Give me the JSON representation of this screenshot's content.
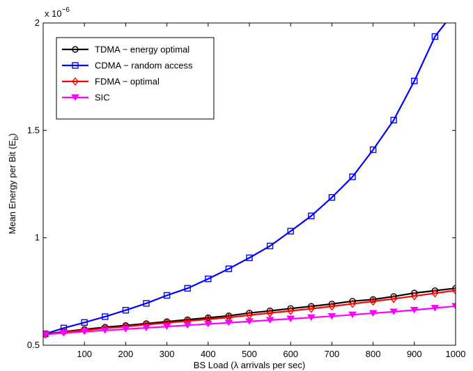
{
  "chart_data": {
    "type": "line",
    "title": "",
    "xlabel": "BS Load (λ arrivals per sec)",
    "ylabel_main": "Mean Energy per Bit (E",
    "ylabel_sub": "b",
    "ylabel_close": ")",
    "y_multiplier_base": "x 10",
    "y_multiplier_exp": "−6",
    "xlim": [
      0,
      1000
    ],
    "ylim": [
      0.5,
      2.0
    ],
    "x_ticks": [
      100,
      200,
      300,
      400,
      500,
      600,
      700,
      800,
      900,
      1000
    ],
    "y_ticks": [
      0.5,
      1,
      1.5,
      2
    ],
    "grid": false,
    "legend_position": "top-left",
    "x": [
      5,
      50,
      100,
      150,
      200,
      250,
      300,
      350,
      400,
      450,
      500,
      550,
      600,
      650,
      700,
      750,
      800,
      850,
      900,
      950,
      1000
    ],
    "series": [
      {
        "name": "TDMA − energy optimal",
        "color": "#000000",
        "marker": "circle",
        "values": [
          0.551,
          0.563,
          0.574,
          0.584,
          0.592,
          0.601,
          0.61,
          0.619,
          0.628,
          0.637,
          0.65,
          0.66,
          0.671,
          0.681,
          0.692,
          0.705,
          0.713,
          0.727,
          0.743,
          0.754,
          0.765
        ]
      },
      {
        "name": "CDMA − random access",
        "color": "#0000ff",
        "marker": "square",
        "values": [
          0.553,
          0.58,
          0.606,
          0.633,
          0.663,
          0.695,
          0.732,
          0.765,
          0.809,
          0.856,
          0.907,
          0.962,
          1.031,
          1.102,
          1.188,
          1.284,
          1.41,
          1.548,
          1.73,
          1.937,
          2.06
        ]
      },
      {
        "name": "FDMA − optimal",
        "color": "#ff0000",
        "marker": "diamond",
        "values": [
          0.55,
          0.561,
          0.57,
          0.579,
          0.587,
          0.596,
          0.604,
          0.613,
          0.621,
          0.629,
          0.64,
          0.65,
          0.66,
          0.67,
          0.681,
          0.693,
          0.704,
          0.716,
          0.729,
          0.742,
          0.755
        ]
      },
      {
        "name": "SIC",
        "color": "#ff00ff",
        "marker": "triangle-down",
        "values": [
          0.55,
          0.557,
          0.563,
          0.569,
          0.575,
          0.581,
          0.587,
          0.593,
          0.599,
          0.605,
          0.611,
          0.617,
          0.623,
          0.629,
          0.635,
          0.642,
          0.649,
          0.656,
          0.664,
          0.673,
          0.682
        ]
      }
    ]
  }
}
